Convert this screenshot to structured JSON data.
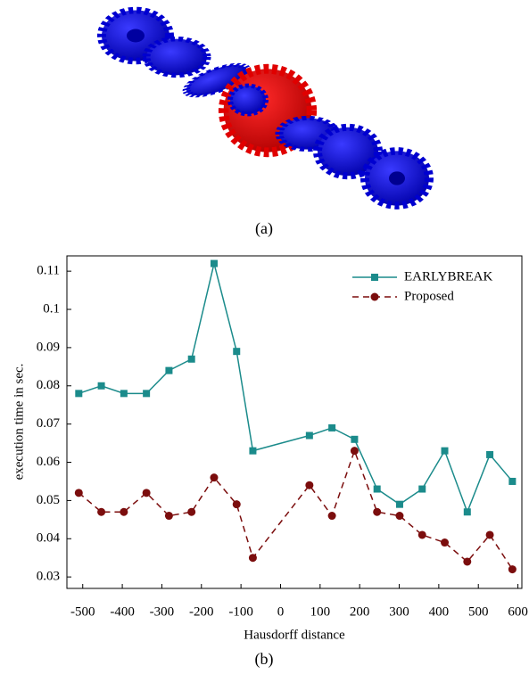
{
  "panel_labels": [
    "(a)",
    "(b)"
  ],
  "chart_data": {
    "type": "line",
    "xlabel": "Hausdorff distance",
    "ylabel": "execution time in sec.",
    "x": [
      -510,
      -453,
      -396,
      -339,
      -282,
      -225,
      -168,
      -111,
      -70,
      73,
      130,
      187,
      244,
      301,
      358,
      415,
      472,
      529,
      586
    ],
    "series": [
      {
        "name": "EARLYBREAK",
        "color": "#1b8b8b",
        "marker": "square",
        "dash": false,
        "values": [
          0.078,
          0.08,
          0.078,
          0.078,
          0.084,
          0.087,
          0.112,
          0.089,
          0.063,
          0.067,
          0.069,
          0.066,
          0.053,
          0.049,
          0.053,
          0.063,
          0.047,
          0.062,
          0.055
        ]
      },
      {
        "name": "Proposed",
        "color": "#7b0d0d",
        "marker": "circle",
        "dash": true,
        "values": [
          0.052,
          0.047,
          0.047,
          0.052,
          0.046,
          0.047,
          0.056,
          0.049,
          0.035,
          0.054,
          0.046,
          0.063,
          0.047,
          0.046,
          0.041,
          0.039,
          0.034,
          0.041,
          0.032
        ]
      }
    ],
    "xlim": [
      -540,
      610
    ],
    "ylim": [
      0.027,
      0.114
    ],
    "xticks": [
      -500,
      -400,
      -300,
      -200,
      -100,
      0,
      100,
      200,
      300,
      400,
      500,
      600
    ],
    "yticks": [
      0.03,
      0.04,
      0.05,
      0.06,
      0.07,
      0.08,
      0.09,
      0.1,
      0.11
    ],
    "grid": false,
    "legend": "upper right"
  }
}
